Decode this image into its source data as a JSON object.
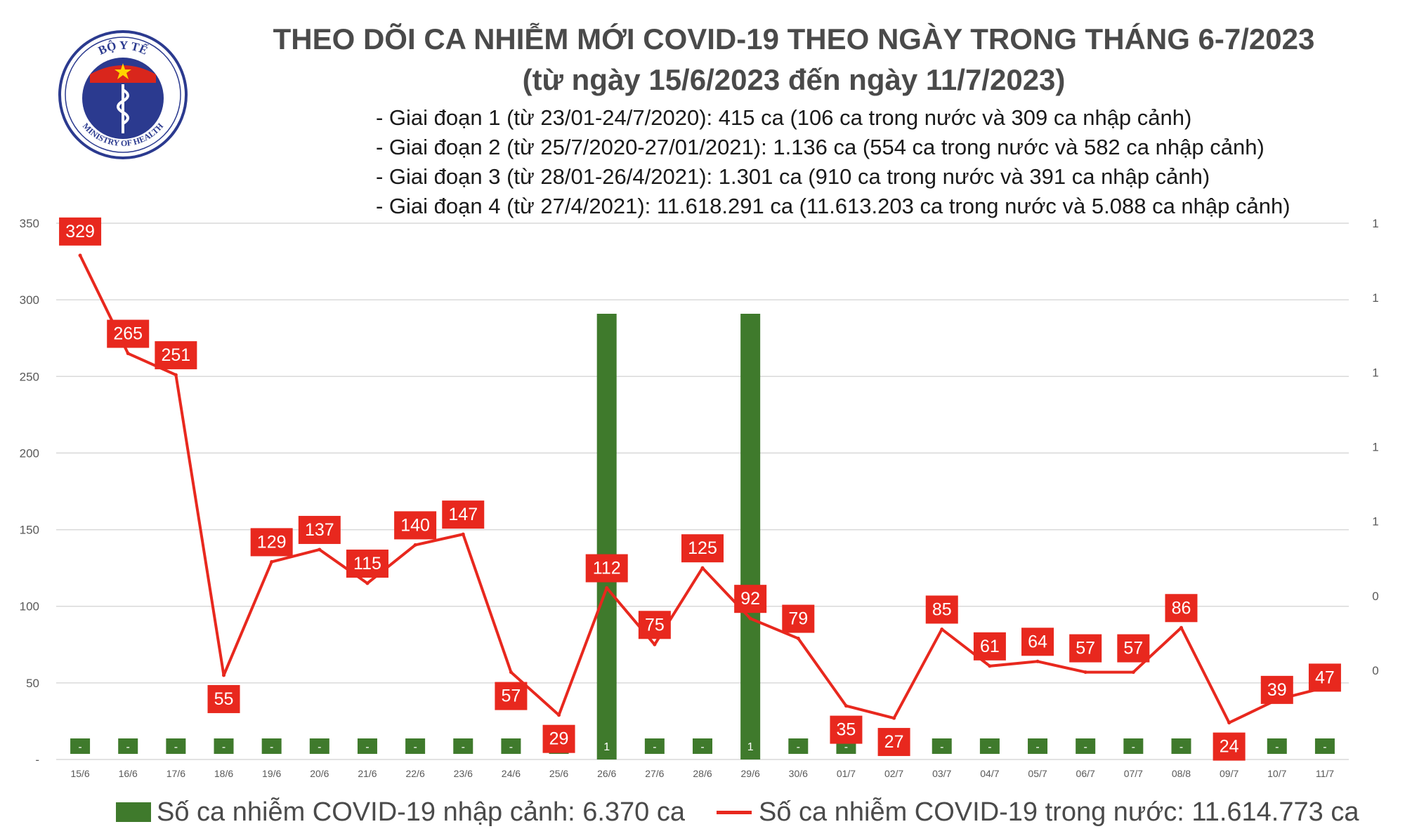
{
  "logo": {
    "top_text": "BỘ Y TẾ",
    "bottom_text": "MINISTRY OF HEALTH"
  },
  "title": "THEO DÕI CA NHIỄM MỚI COVID-19 THEO NGÀY TRONG THÁNG 6-7/2023",
  "subtitle": "(từ ngày 15/6/2023 đến ngày 11/7/2023)",
  "stages": [
    "- Giai đoạn 1 (từ 23/01-24/7/2020): 415 ca (106 ca trong nước và 309 ca nhập cảnh)",
    "- Giai đoạn 2 (từ 25/7/2020-27/01/2021): 1.136 ca (554 ca trong nước và 582 ca nhập cảnh)",
    "- Giai đoạn 3 (từ 28/01-26/4/2021): 1.301 ca (910 ca trong nước và 391 ca nhập cảnh)",
    "- Giai đoạn 4 (từ 27/4/2021): 11.618.291 ca (11.613.203 ca trong nước và 5.088 ca nhập cảnh)"
  ],
  "legend": {
    "bar_label": "Số ca nhiễm COVID-19 nhập cảnh: 6.370 ca",
    "line_label": "Số ca nhiễm COVID-19 trong nước: 11.614.773 ca"
  },
  "colors": {
    "bar": "#3f7a2c",
    "line": "#e8281e",
    "label_bg": "#e8281e",
    "grid": "#d9d9d9"
  },
  "chart_data": {
    "type": "bar+line",
    "categories": [
      "15/6",
      "16/6",
      "17/6",
      "18/6",
      "19/6",
      "20/6",
      "21/6",
      "22/6",
      "23/6",
      "24/6",
      "25/6",
      "26/6",
      "27/6",
      "28/6",
      "29/6",
      "30/6",
      "01/7",
      "02/7",
      "03/7",
      "04/7",
      "05/7",
      "06/7",
      "07/7",
      "08/8",
      "09/7",
      "10/7",
      "11/7"
    ],
    "series": [
      {
        "name": "Số ca nhiễm COVID-19 nhập cảnh",
        "type": "bar",
        "axis": "right",
        "values": [
          0,
          0,
          0,
          0,
          0,
          0,
          0,
          0,
          0,
          0,
          0,
          1,
          0,
          0,
          1,
          0,
          0,
          0,
          0,
          0,
          0,
          0,
          0,
          0,
          0,
          0,
          0
        ],
        "labels": [
          "-",
          "-",
          "-",
          "-",
          "-",
          "-",
          "-",
          "-",
          "-",
          "-",
          "-",
          "1",
          "-",
          "-",
          "1",
          "-",
          "-",
          "-",
          "-",
          "-",
          "-",
          "-",
          "-",
          "-",
          "-",
          "-",
          "-"
        ]
      },
      {
        "name": "Số ca nhiễm COVID-19 trong nước",
        "type": "line",
        "axis": "left",
        "values": [
          329,
          265,
          251,
          55,
          129,
          137,
          115,
          140,
          147,
          57,
          29,
          112,
          75,
          125,
          92,
          79,
          35,
          27,
          85,
          61,
          64,
          57,
          57,
          86,
          24,
          39,
          47
        ]
      }
    ],
    "left_axis": {
      "ylim": [
        0,
        350
      ],
      "ticks": [
        "-",
        "50",
        "100",
        "150",
        "200",
        "250",
        "300",
        "350"
      ]
    },
    "right_axis": {
      "ylim": [
        0,
        1.2
      ],
      "ticks": [
        "0",
        "0",
        "1",
        "1",
        "1",
        "1",
        "1"
      ]
    },
    "grid": true,
    "legend_position": "bottom"
  }
}
